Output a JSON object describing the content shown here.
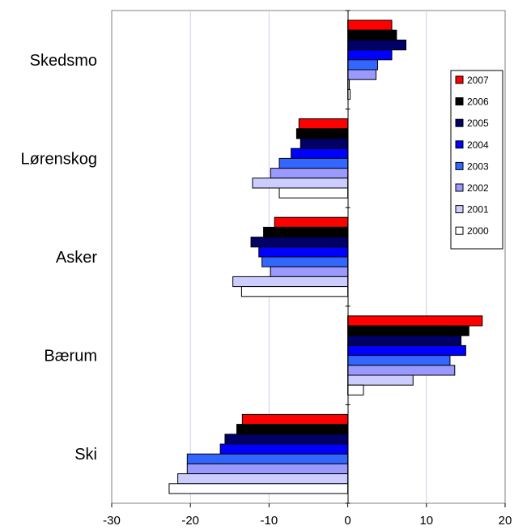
{
  "chart_data": {
    "type": "bar",
    "orientation": "horizontal",
    "title": "",
    "xlabel": "",
    "ylabel": "",
    "xlim": [
      -30,
      20
    ],
    "xticks": [
      "-30",
      "-20",
      "-10",
      "0",
      "10",
      "20"
    ],
    "grid": "vertical",
    "legend_position": "right",
    "categories": [
      "Skedsmo",
      "Lørenskog",
      "Asker",
      "Bærum",
      "Ski"
    ],
    "series": [
      {
        "name": "2007",
        "color": "#ff0000",
        "values": [
          5.6,
          -6.2,
          -9.3,
          17.1,
          -13.4
        ]
      },
      {
        "name": "2006",
        "color": "#000000",
        "values": [
          6.2,
          -6.5,
          -10.7,
          15.4,
          -14.1
        ]
      },
      {
        "name": "2005",
        "color": "#000066",
        "values": [
          7.4,
          -6.0,
          -12.3,
          14.4,
          -15.6
        ]
      },
      {
        "name": "2004",
        "color": "#0000ff",
        "values": [
          5.6,
          -7.2,
          -11.3,
          15.0,
          -16.2
        ]
      },
      {
        "name": "2003",
        "color": "#3366ff",
        "values": [
          3.8,
          -8.7,
          -10.9,
          13.0,
          -20.4
        ]
      },
      {
        "name": "2002",
        "color": "#9999ff",
        "values": [
          3.6,
          -9.8,
          -9.8,
          13.6,
          -20.4
        ]
      },
      {
        "name": "2001",
        "color": "#ccccff",
        "values": [
          0.2,
          -12.1,
          -14.6,
          8.3,
          -21.6
        ]
      },
      {
        "name": "2000",
        "color": "#ffffff",
        "values": [
          0.3,
          -8.7,
          -13.5,
          2.0,
          -22.7
        ]
      }
    ]
  }
}
